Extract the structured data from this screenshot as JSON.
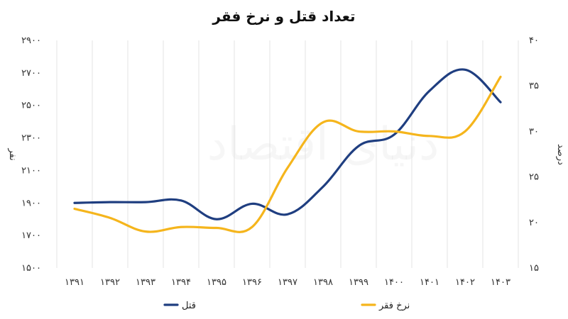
{
  "chart_data": {
    "type": "line",
    "title": "تعداد قتل و نرخ فقر",
    "watermark": "دنیای اقتصاد",
    "categories": [
      "۱۳۹۱",
      "۱۳۹۲",
      "۱۳۹۳",
      "۱۳۹۴",
      "۱۳۹۵",
      "۱۳۹۶",
      "۱۳۹۷",
      "۱۳۹۸",
      "۱۳۹۹",
      "۱۴۰۰",
      "۱۴۰۱",
      "۱۴۰۲",
      "۱۴۰۳"
    ],
    "y_left": {
      "label": "نفر",
      "min": 1500,
      "max": 2900,
      "step": 200,
      "ticks": [
        "۱۵۰۰",
        "۱۷۰۰",
        "۱۹۰۰",
        "۲۱۰۰",
        "۲۳۰۰",
        "۲۵۰۰",
        "۲۷۰۰",
        "۲۹۰۰"
      ]
    },
    "y_right": {
      "label": "درصد",
      "min": 15,
      "max": 40,
      "step": 5,
      "ticks": [
        "۱۵",
        "۲۰",
        "۲۵",
        "۳۰",
        "۳۵",
        "۴۰"
      ]
    },
    "series": [
      {
        "name": "قتل",
        "axis": "left",
        "color": "#1f3e80",
        "values": [
          1900,
          1905,
          1905,
          1915,
          1800,
          1895,
          1830,
          2000,
          2250,
          2320,
          2590,
          2720,
          2520
        ]
      },
      {
        "name": "نرخ فقر",
        "axis": "right",
        "color": "#f5b51c",
        "values": [
          21.5,
          20.5,
          19.0,
          19.5,
          19.4,
          19.5,
          26.0,
          31.0,
          30.0,
          30.0,
          29.5,
          30.0,
          36.0
        ]
      }
    ],
    "legend": "bottom",
    "grid": true
  }
}
